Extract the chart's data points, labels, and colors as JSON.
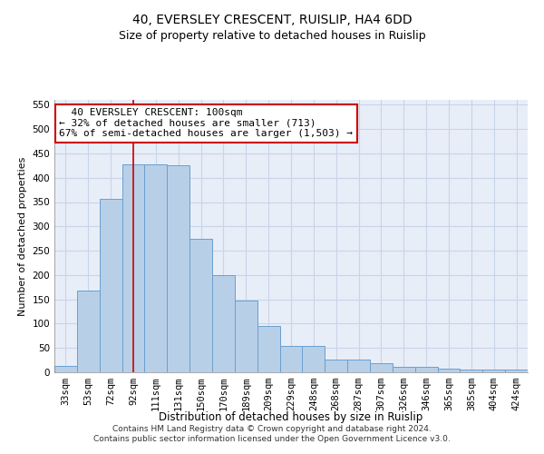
{
  "title": "40, EVERSLEY CRESCENT, RUISLIP, HA4 6DD",
  "subtitle": "Size of property relative to detached houses in Ruislip",
  "xlabel": "Distribution of detached houses by size in Ruislip",
  "ylabel": "Number of detached properties",
  "categories": [
    "33sqm",
    "53sqm",
    "72sqm",
    "92sqm",
    "111sqm",
    "131sqm",
    "150sqm",
    "170sqm",
    "189sqm",
    "209sqm",
    "229sqm",
    "248sqm",
    "268sqm",
    "287sqm",
    "307sqm",
    "326sqm",
    "346sqm",
    "365sqm",
    "385sqm",
    "404sqm",
    "424sqm"
  ],
  "values": [
    13,
    168,
    357,
    428,
    428,
    425,
    275,
    200,
    148,
    96,
    55,
    55,
    26,
    26,
    19,
    12,
    12,
    7,
    5,
    5,
    5
  ],
  "bar_color": "#b8cfe8",
  "bar_edge_color": "#6aa0d0",
  "grid_color": "#c8d4e8",
  "bg_color": "#e8eef8",
  "annotation_box_text": "  40 EVERSLEY CRESCENT: 100sqm\n← 32% of detached houses are smaller (713)\n67% of semi-detached houses are larger (1,503) →",
  "vline_x": 3.0,
  "vline_color": "#cc0000",
  "ylim": [
    0,
    560
  ],
  "yticks": [
    0,
    50,
    100,
    150,
    200,
    250,
    300,
    350,
    400,
    450,
    500,
    550
  ],
  "footer": "Contains HM Land Registry data © Crown copyright and database right 2024.\nContains public sector information licensed under the Open Government Licence v3.0.",
  "title_fontsize": 10,
  "subtitle_fontsize": 9,
  "xlabel_fontsize": 8.5,
  "ylabel_fontsize": 8,
  "tick_fontsize": 7.5,
  "annotation_fontsize": 8,
  "footer_fontsize": 6.5
}
